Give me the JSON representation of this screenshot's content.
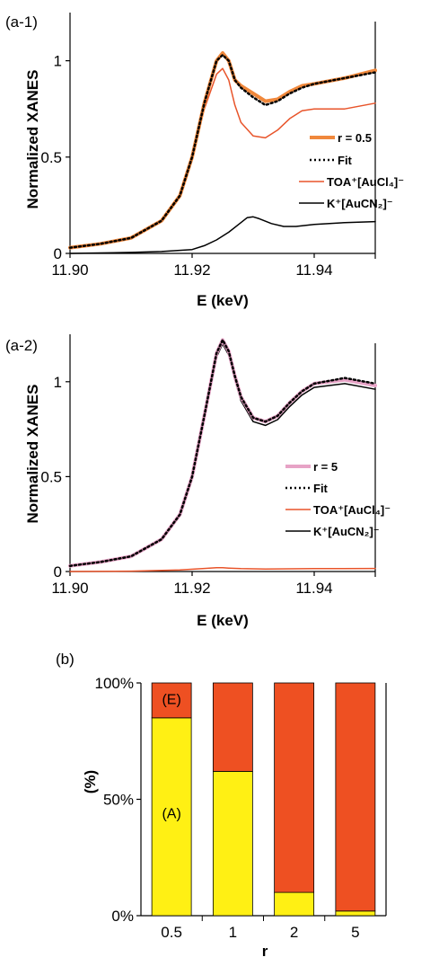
{
  "colors": {
    "mix_0_5": "#F0883C",
    "mix_5": "#E7A3C6",
    "fit": "#000000",
    "toa": "#E8542A",
    "k": "#000000",
    "bar_A": "#FFF014",
    "bar_E": "#EE5022"
  },
  "chart_data": [
    {
      "id": "a1",
      "type": "line",
      "panel_label": "(a-1)",
      "xlabel": "E (keV)",
      "ylabel": "Normalized XANES",
      "xlim": [
        11.9,
        11.95
      ],
      "ylim": [
        0,
        1.25
      ],
      "x_ticks": [
        11.9,
        11.92,
        11.94
      ],
      "x_tick_labels": [
        "11.90",
        "11.92",
        "11.94"
      ],
      "y_ticks": [
        0,
        0.5,
        1
      ],
      "y_tick_labels": [
        "0",
        "0.5",
        "1"
      ],
      "legend_position": "right",
      "series": [
        {
          "name": "r = 0.5",
          "style": "thick",
          "color_key": "mix_0_5",
          "x": [
            11.9,
            11.905,
            11.91,
            11.915,
            11.918,
            11.92,
            11.922,
            11.924,
            11.925,
            11.926,
            11.927,
            11.928,
            11.93,
            11.932,
            11.934,
            11.936,
            11.938,
            11.94,
            11.945,
            11.95
          ],
          "y": [
            0.03,
            0.05,
            0.08,
            0.17,
            0.3,
            0.5,
            0.78,
            1.0,
            1.04,
            1.0,
            0.9,
            0.87,
            0.83,
            0.79,
            0.8,
            0.84,
            0.87,
            0.88,
            0.91,
            0.95
          ]
        },
        {
          "name": "Fit",
          "style": "dotted",
          "color_key": "fit",
          "x": [
            11.9,
            11.905,
            11.91,
            11.915,
            11.918,
            11.92,
            11.922,
            11.924,
            11.925,
            11.926,
            11.927,
            11.928,
            11.93,
            11.932,
            11.934,
            11.936,
            11.938,
            11.94,
            11.945,
            11.95
          ],
          "y": [
            0.03,
            0.05,
            0.08,
            0.17,
            0.3,
            0.5,
            0.78,
            1.0,
            1.03,
            1.0,
            0.9,
            0.86,
            0.81,
            0.77,
            0.79,
            0.83,
            0.86,
            0.88,
            0.91,
            0.94
          ]
        },
        {
          "name": "TOA⁺[AuCl₄]⁻",
          "style": "thin",
          "color_key": "toa",
          "x": [
            11.9,
            11.905,
            11.91,
            11.915,
            11.918,
            11.92,
            11.922,
            11.924,
            11.925,
            11.926,
            11.927,
            11.928,
            11.93,
            11.932,
            11.934,
            11.936,
            11.938,
            11.94,
            11.945,
            11.95
          ],
          "y": [
            0.03,
            0.05,
            0.08,
            0.17,
            0.3,
            0.5,
            0.75,
            0.93,
            0.96,
            0.9,
            0.77,
            0.68,
            0.61,
            0.6,
            0.64,
            0.7,
            0.74,
            0.75,
            0.75,
            0.78
          ]
        },
        {
          "name": "K⁺[AuCN₂]⁻",
          "style": "thin",
          "color_key": "k",
          "x": [
            11.9,
            11.91,
            11.915,
            11.92,
            11.922,
            11.924,
            11.926,
            11.928,
            11.929,
            11.93,
            11.931,
            11.933,
            11.935,
            11.937,
            11.94,
            11.945,
            11.95
          ],
          "y": [
            0.0,
            0.005,
            0.01,
            0.02,
            0.04,
            0.07,
            0.11,
            0.16,
            0.185,
            0.19,
            0.18,
            0.155,
            0.14,
            0.14,
            0.15,
            0.16,
            0.165
          ]
        }
      ]
    },
    {
      "id": "a2",
      "type": "line",
      "panel_label": "(a-2)",
      "xlabel": "E (keV)",
      "ylabel": "Normalized XANES",
      "xlim": [
        11.9,
        11.95
      ],
      "ylim": [
        0,
        1.25
      ],
      "x_ticks": [
        11.9,
        11.92,
        11.94
      ],
      "x_tick_labels": [
        "11.90",
        "11.92",
        "11.94"
      ],
      "y_ticks": [
        0,
        0.5,
        1
      ],
      "y_tick_labels": [
        "0",
        "0.5",
        "1"
      ],
      "legend_position": "right",
      "series": [
        {
          "name": "r = 5",
          "style": "thick",
          "color_key": "mix_5",
          "x": [
            11.9,
            11.905,
            11.91,
            11.915,
            11.918,
            11.92,
            11.922,
            11.924,
            11.925,
            11.926,
            11.927,
            11.928,
            11.93,
            11.932,
            11.934,
            11.936,
            11.938,
            11.94,
            11.945,
            11.95
          ],
          "y": [
            0.03,
            0.05,
            0.08,
            0.17,
            0.3,
            0.5,
            0.82,
            1.15,
            1.22,
            1.16,
            1.03,
            0.92,
            0.81,
            0.79,
            0.82,
            0.89,
            0.95,
            0.99,
            1.01,
            0.98
          ]
        },
        {
          "name": "Fit",
          "style": "dotted",
          "color_key": "fit",
          "x": [
            11.9,
            11.905,
            11.91,
            11.915,
            11.918,
            11.92,
            11.922,
            11.924,
            11.925,
            11.926,
            11.927,
            11.928,
            11.93,
            11.932,
            11.934,
            11.936,
            11.938,
            11.94,
            11.945,
            11.95
          ],
          "y": [
            0.03,
            0.05,
            0.08,
            0.17,
            0.3,
            0.5,
            0.82,
            1.15,
            1.22,
            1.16,
            1.03,
            0.92,
            0.81,
            0.79,
            0.82,
            0.89,
            0.95,
            0.99,
            1.02,
            0.99
          ]
        },
        {
          "name": "TOA⁺[AuCl₄]⁻",
          "style": "thin",
          "color_key": "toa",
          "x": [
            11.9,
            11.91,
            11.918,
            11.922,
            11.924,
            11.925,
            11.926,
            11.928,
            11.932,
            11.94,
            11.95
          ],
          "y": [
            0.0,
            0.002,
            0.008,
            0.016,
            0.02,
            0.02,
            0.018,
            0.015,
            0.013,
            0.015,
            0.016
          ]
        },
        {
          "name": "K⁺[AuCN₂]⁻",
          "style": "thin",
          "color_key": "k",
          "x": [
            11.9,
            11.905,
            11.91,
            11.915,
            11.918,
            11.92,
            11.922,
            11.924,
            11.925,
            11.926,
            11.927,
            11.928,
            11.93,
            11.932,
            11.934,
            11.936,
            11.938,
            11.94,
            11.945,
            11.95
          ],
          "y": [
            0.03,
            0.05,
            0.08,
            0.17,
            0.3,
            0.5,
            0.8,
            1.13,
            1.2,
            1.14,
            1.01,
            0.9,
            0.79,
            0.77,
            0.8,
            0.87,
            0.93,
            0.97,
            0.99,
            0.96
          ]
        }
      ]
    },
    {
      "id": "b",
      "type": "bar",
      "stacked": true,
      "panel_label": "(b)",
      "xlabel": "r",
      "ylabel": "(%)",
      "ylim": [
        0,
        100
      ],
      "y_ticks": [
        0,
        50,
        100
      ],
      "y_tick_labels": [
        "0%",
        "50%",
        "100%"
      ],
      "categories": [
        "0.5",
        "1",
        "2",
        "5"
      ],
      "series": [
        {
          "label": "(A)",
          "color_key": "bar_A",
          "values": [
            85,
            62,
            10,
            2
          ]
        },
        {
          "label": "(E)",
          "color_key": "bar_E",
          "values": [
            15,
            38,
            90,
            98
          ]
        }
      ]
    }
  ]
}
